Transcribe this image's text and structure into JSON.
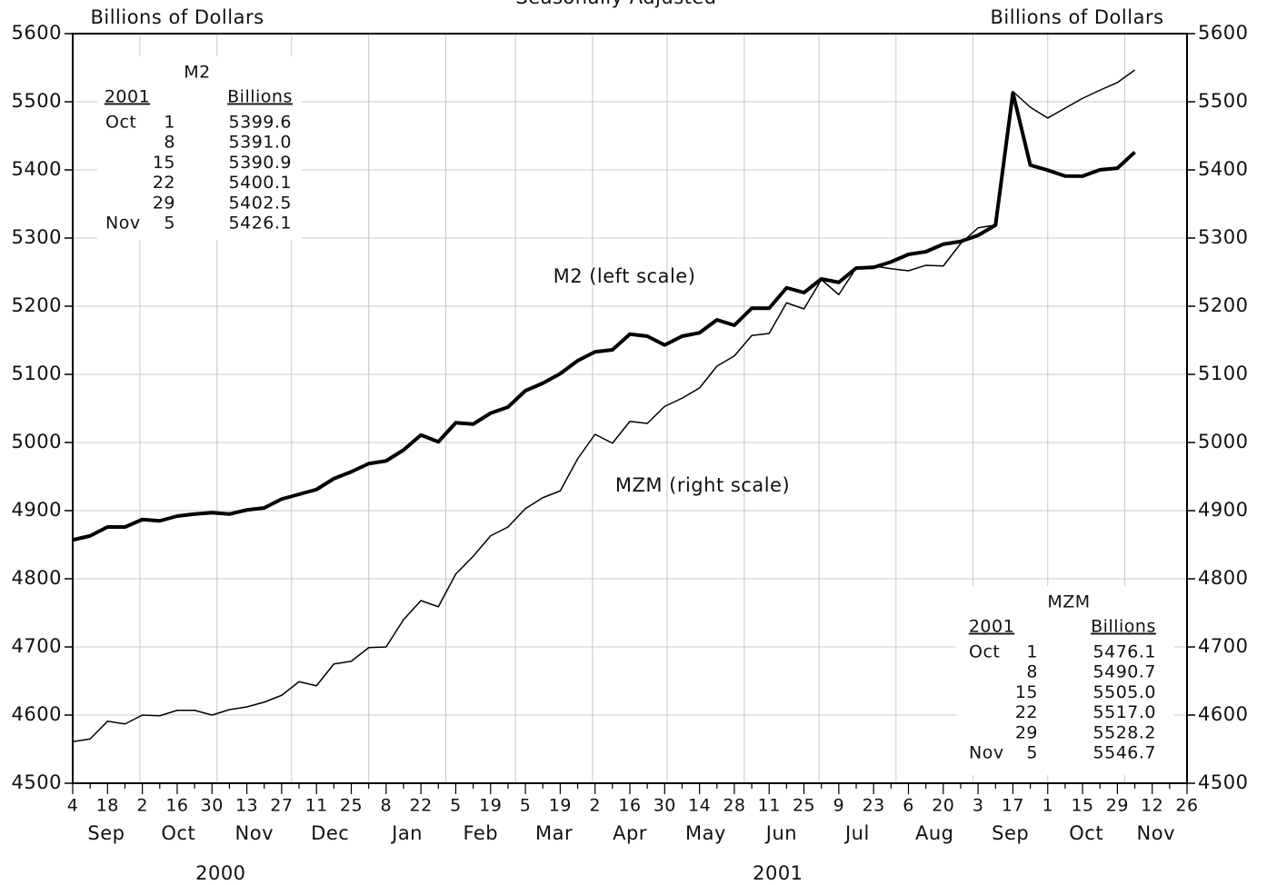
{
  "chart_data": {
    "type": "line",
    "title": "Seasonally Adjusted",
    "y_label": "Billions of Dollars",
    "y2_label": "Billions of Dollars",
    "annotations": [
      "M2 (left scale)",
      "MZM (right scale)"
    ],
    "categories": [
      "4",
      null,
      "18",
      null,
      "2",
      null,
      "16",
      null,
      "30",
      null,
      "13",
      null,
      "27",
      null,
      "11",
      null,
      "25",
      null,
      "8",
      null,
      "22",
      null,
      "5",
      null,
      "19",
      null,
      "5",
      null,
      "19",
      null,
      "2",
      null,
      "16",
      null,
      "30",
      null,
      "14",
      null,
      "28",
      null,
      "11",
      null,
      "25",
      null,
      "9",
      null,
      "23",
      null,
      "6",
      null,
      "20",
      null,
      "3",
      null,
      "17",
      null,
      "1",
      null,
      "15",
      null,
      "29",
      null,
      "12",
      null,
      "26"
    ],
    "months": [
      "Sep",
      "Oct",
      "Nov",
      "Dec",
      "Jan",
      "Feb",
      "Mar",
      "Apr",
      "May",
      "Jun",
      "Jul",
      "Aug",
      "Sep",
      "Oct",
      "Nov"
    ],
    "years": [
      "2000",
      "2001"
    ],
    "series": [
      {
        "name": "M2",
        "color": "#000000",
        "line_width": 4,
        "values": [
          4857,
          4863,
          4876,
          4876,
          4887,
          4885,
          4892,
          4895,
          4897,
          4895,
          4901,
          4904,
          4917,
          4924,
          4931,
          4947,
          4957,
          4969,
          4973,
          4989,
          5011,
          5001,
          5029,
          5027,
          5043,
          5052,
          5076,
          5087,
          5101,
          5120,
          5133,
          5136,
          5159,
          5156,
          5143,
          5156,
          5161,
          5180,
          5172,
          5197,
          5197,
          5227,
          5220,
          5240,
          5235,
          5256,
          5257,
          5265,
          5276,
          5280,
          5291,
          5295,
          5304,
          5319,
          5513,
          5407,
          5399.6,
          5391.0,
          5390.9,
          5400.1,
          5402.5,
          5426.1,
          null,
          null,
          null
        ]
      },
      {
        "name": "MZM",
        "color": "#000000",
        "line_width": 1.5,
        "axis": "y2",
        "values": [
          4561,
          4565,
          4591,
          4587,
          4600,
          4599,
          4607,
          4607,
          4600,
          4608,
          4612,
          4619,
          4629,
          4649,
          4643,
          4675,
          4679,
          4699,
          4700,
          4740,
          4768,
          4759,
          4807,
          4833,
          4863,
          4876,
          4903,
          4919,
          4929,
          4976,
          5012,
          4999,
          5031,
          5028,
          5053,
          5065,
          5080,
          5112,
          5127,
          5157,
          5160,
          5205,
          5196,
          5239,
          5217,
          5256,
          5259,
          5255,
          5252,
          5260,
          5259,
          5292,
          5315,
          5319,
          5515,
          5492,
          5476.1,
          5490.7,
          5505.0,
          5517.0,
          5528.2,
          5546.7,
          null,
          null,
          null
        ]
      }
    ],
    "ylim": [
      4500,
      5600
    ],
    "yticks": [
      4500,
      4600,
      4700,
      4800,
      4900,
      5000,
      5100,
      5200,
      5300,
      5400,
      5500,
      5600
    ],
    "y2lim": [
      4500,
      5600
    ],
    "y2ticks": [
      4500,
      4600,
      4700,
      4800,
      4900,
      5000,
      5100,
      5200,
      5300,
      5400,
      5500,
      5600
    ],
    "grid": true,
    "tables": [
      {
        "title": "M2",
        "header": [
          "2001",
          "Billions"
        ],
        "rows": [
          [
            "Oct",
            "1",
            "5399.6"
          ],
          [
            null,
            "8",
            "5391.0"
          ],
          [
            null,
            "15",
            "5390.9"
          ],
          [
            null,
            "22",
            "5400.1"
          ],
          [
            null,
            "29",
            "5402.5"
          ],
          [
            "Nov",
            "5",
            "5426.1"
          ]
        ]
      },
      {
        "title": "MZM",
        "header": [
          "2001",
          "Billions"
        ],
        "rows": [
          [
            "Oct",
            "1",
            "5476.1"
          ],
          [
            null,
            "8",
            "5490.7"
          ],
          [
            null,
            "15",
            "5505.0"
          ],
          [
            null,
            "22",
            "5517.0"
          ],
          [
            null,
            "29",
            "5528.2"
          ],
          [
            "Nov",
            "5",
            "5546.7"
          ]
        ]
      }
    ]
  }
}
